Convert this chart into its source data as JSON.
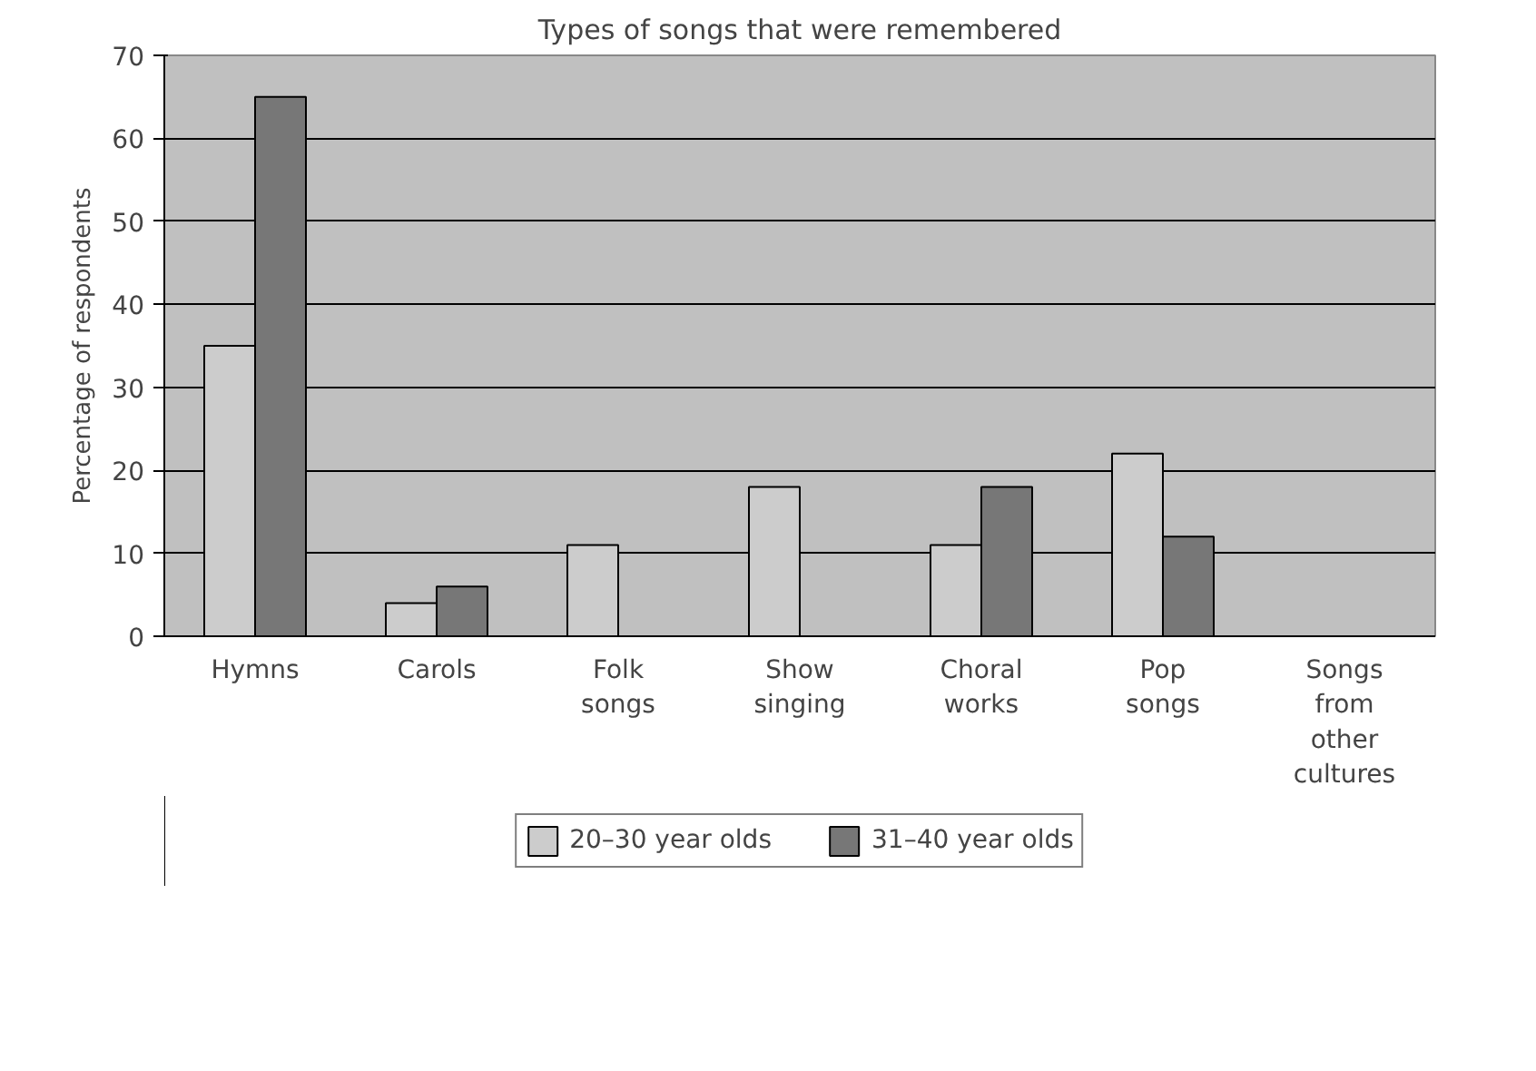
{
  "chart_data": {
    "type": "bar",
    "title": "Types of songs that were remembered",
    "ylabel": "Percentage of respondents",
    "categories": [
      "Hymns",
      "Carols",
      "Folk songs",
      "Show singing",
      "Choral works",
      "Pop songs",
      "Songs from other cultures"
    ],
    "series": [
      {
        "name": "20–30 year olds",
        "color": "#cccccc",
        "values": [
          35,
          4,
          11,
          18,
          11,
          22,
          0
        ]
      },
      {
        "name": "31–40 year olds",
        "color": "#777777",
        "values": [
          65,
          6,
          0,
          0,
          18,
          12,
          0
        ]
      }
    ],
    "ylim": [
      0,
      70
    ],
    "yticks": [
      0,
      10,
      20,
      30,
      40,
      50,
      60,
      70
    ],
    "grid": "y",
    "legend": "bottom"
  }
}
